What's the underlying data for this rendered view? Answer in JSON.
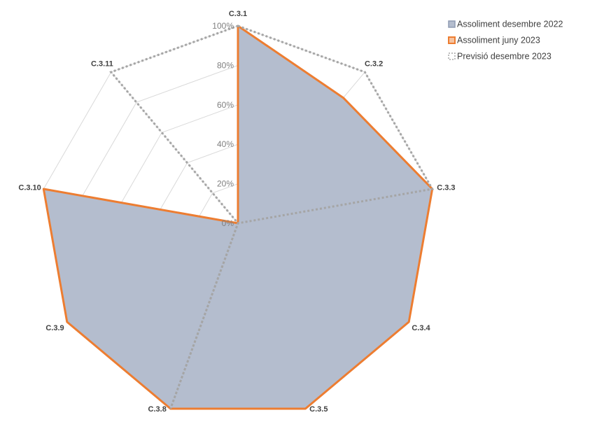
{
  "chart_data": {
    "type": "radar",
    "categories": [
      "C.3.1",
      "C.3.2",
      "C.3.3",
      "C.3.4",
      "C.3.5",
      "C.3.8",
      "C.3.9",
      "C.3.10",
      "C.3.11"
    ],
    "rlim": [
      0,
      100
    ],
    "ticks": [
      "0%",
      "20%",
      "40%",
      "60%",
      "80%",
      "100%"
    ],
    "grid": true,
    "legend_position": "top-right",
    "series": [
      {
        "name": "Assoliment desembre 2022",
        "values": [
          100,
          83,
          100,
          100,
          100,
          100,
          100,
          100,
          0
        ],
        "style": "filled"
      },
      {
        "name": "Assoliment juny 2023",
        "values": [
          100,
          83,
          100,
          100,
          100,
          100,
          100,
          100,
          0
        ],
        "style": "line"
      },
      {
        "name": "Previsió desembre 2023",
        "values": [
          100,
          100,
          100,
          0,
          0,
          100,
          0,
          0,
          100
        ],
        "style": "dotted"
      }
    ],
    "colors": {
      "fill": "#b4bdce",
      "fill_stroke": "#8f9bb3",
      "line": "#ed7d31",
      "dotted": "#a5a5a5",
      "grid": "#d9d9d9",
      "tick_text": "#7f7f7f"
    }
  }
}
